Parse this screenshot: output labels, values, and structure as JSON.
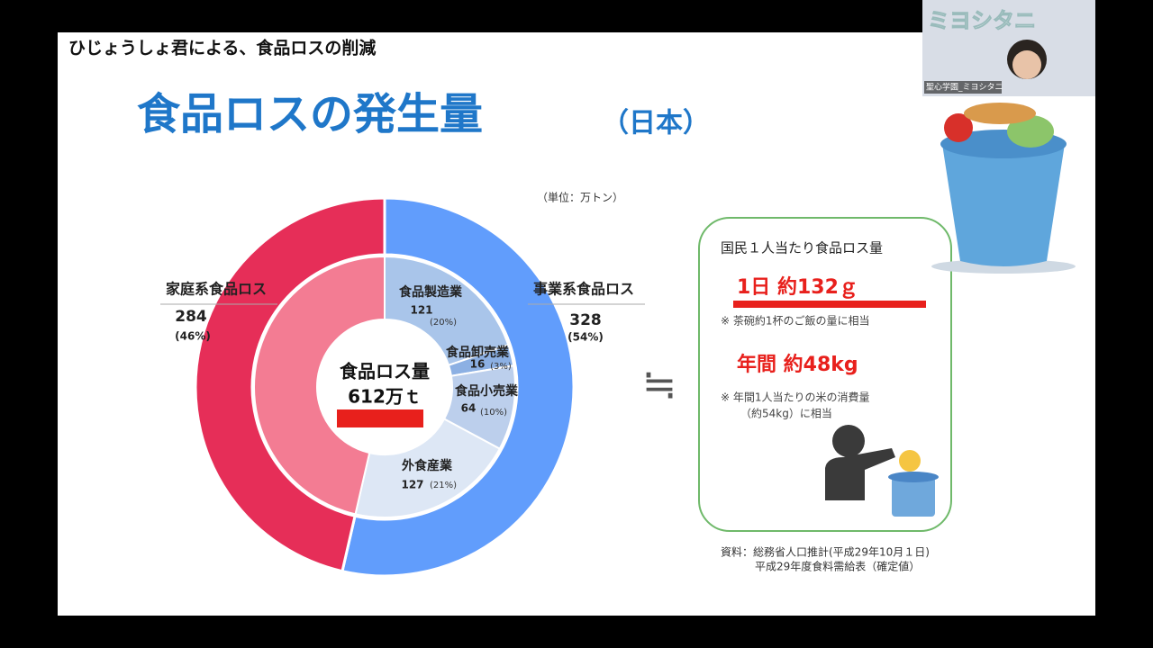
{
  "window": {
    "caption": "ひじょうしょ君による、食品ロスの削減",
    "participant_name": "聖心学園_ミヨシタニ",
    "banner": "ミヨシタニ"
  },
  "slide": {
    "title": "食品ロスの発生量",
    "title_note": "（日本）",
    "unit": "（単位：万トン）",
    "center_label": "食品ロス量",
    "center_total": "612万ｔ",
    "approx_symbol": "≒",
    "box": {
      "heading": "国民１人当たり食品ロス量",
      "daily": "1日 約132ｇ",
      "daily_note": "※ 茶碗約1杯のご飯の量に相当",
      "yearly": "年間 約48kg",
      "yearly_note": [
        "※ 年間1人当たりの米の消費量",
        "（約54kg）に相当"
      ]
    },
    "source": [
      "資料：総務省人口推計(平成29年10月１日)",
      "平成29年度食料需給表（確定値）"
    ]
  },
  "chart_data": {
    "type": "donut",
    "outer": {
      "categories": [
        "家庭系食品ロス",
        "事業系食品ロス"
      ],
      "values": [
        284,
        328
      ],
      "percent_labels": [
        "(46%)",
        "(54%)"
      ],
      "colors": [
        "#e62e58",
        "#619dfc"
      ],
      "inner_color": "#f37c93"
    },
    "inner": {
      "categories": [
        "食品製造業",
        "食品卸売業",
        "食品小売業",
        "外食産業"
      ],
      "values": [
        121,
        16,
        64,
        127
      ],
      "percent_labels": [
        "(20%)",
        "(3%)",
        "(10%)",
        "(21%)"
      ],
      "colors": [
        "#a9c5ea",
        "#8cb0e3",
        "#bccfec",
        "#dde7f5"
      ]
    }
  }
}
